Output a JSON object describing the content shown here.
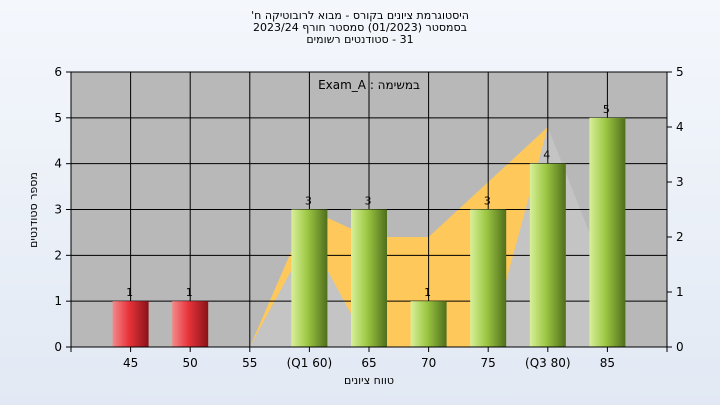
{
  "header": {
    "line1": "היסטוגרמת ציונים בקורס - מבוא לרובוטיקה ח'",
    "line2": "בסמסטר  (01/2023)  סמסטר חורף 2023/24",
    "line3": "31 - סטודנטים רשומים"
  },
  "chart_data": {
    "type": "bar",
    "annotation": "במשימה : Exam_A",
    "xlabel": "טווח ציונים",
    "ylabel": "מספר סטודנטים",
    "ylim": [
      0,
      6
    ],
    "y_ticks": [
      0,
      1,
      2,
      3,
      4,
      5,
      6
    ],
    "y2lim": [
      0,
      5
    ],
    "y2_ticks": [
      0,
      1,
      2,
      3,
      4,
      5
    ],
    "grid": true,
    "categories": [
      "45",
      "50",
      "55",
      "(Q1 60)",
      "65",
      "70",
      "75",
      "(Q3 80)",
      "85"
    ],
    "values": [
      1,
      1,
      0,
      3,
      3,
      1,
      3,
      4,
      5
    ],
    "value_labels": [
      "1",
      "1",
      "",
      "3",
      "3",
      "1",
      "3",
      "4",
      "5"
    ],
    "bar_colors": [
      "#d8202a",
      "#d8202a",
      "#d8202a",
      "#8fbf3a",
      "#8fbf3a",
      "#8fbf3a",
      "#8fbf3a",
      "#8fbf3a",
      "#8fbf3a"
    ],
    "background_area": {
      "color": "#ffc85a",
      "values": [
        0,
        0,
        0,
        3,
        2.4,
        2.4,
        3.6,
        4.8,
        0
      ]
    },
    "background_area_gray": {
      "color": "#c4c4c4",
      "values": [
        0,
        0,
        0,
        2.4,
        0,
        0,
        0,
        4.8,
        1.5
      ]
    }
  }
}
